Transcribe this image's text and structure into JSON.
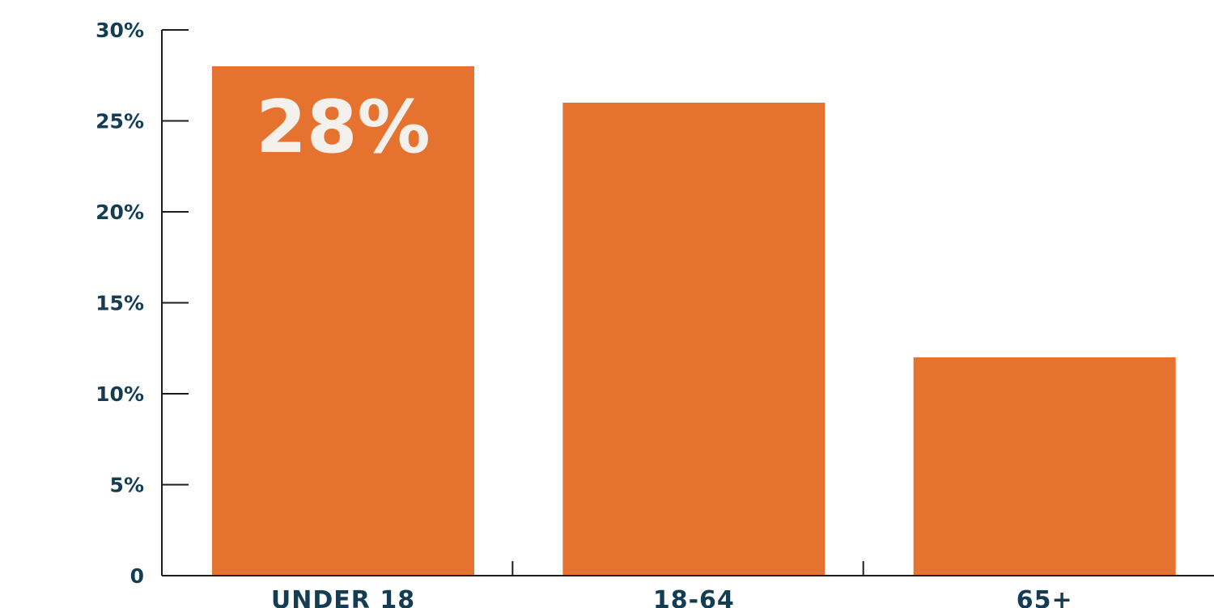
{
  "chart_data": {
    "type": "bar",
    "categories": [
      "UNDER 18",
      "18-64",
      "65+"
    ],
    "values": [
      28,
      26,
      12
    ],
    "data_labels": [
      "28%",
      "",
      ""
    ],
    "title": "",
    "xlabel": "",
    "ylabel": "",
    "ylim": [
      0,
      30
    ],
    "yticks": [
      0,
      5,
      10,
      15,
      20,
      25,
      30
    ],
    "ytick_labels": [
      "0",
      "5%",
      "10%",
      "15%",
      "20%",
      "25%",
      "30%"
    ],
    "grid": false,
    "legend": "none",
    "bar_color": "#e5732f",
    "text_color": "#143d54",
    "data_label_color": "#f4f1ec"
  }
}
